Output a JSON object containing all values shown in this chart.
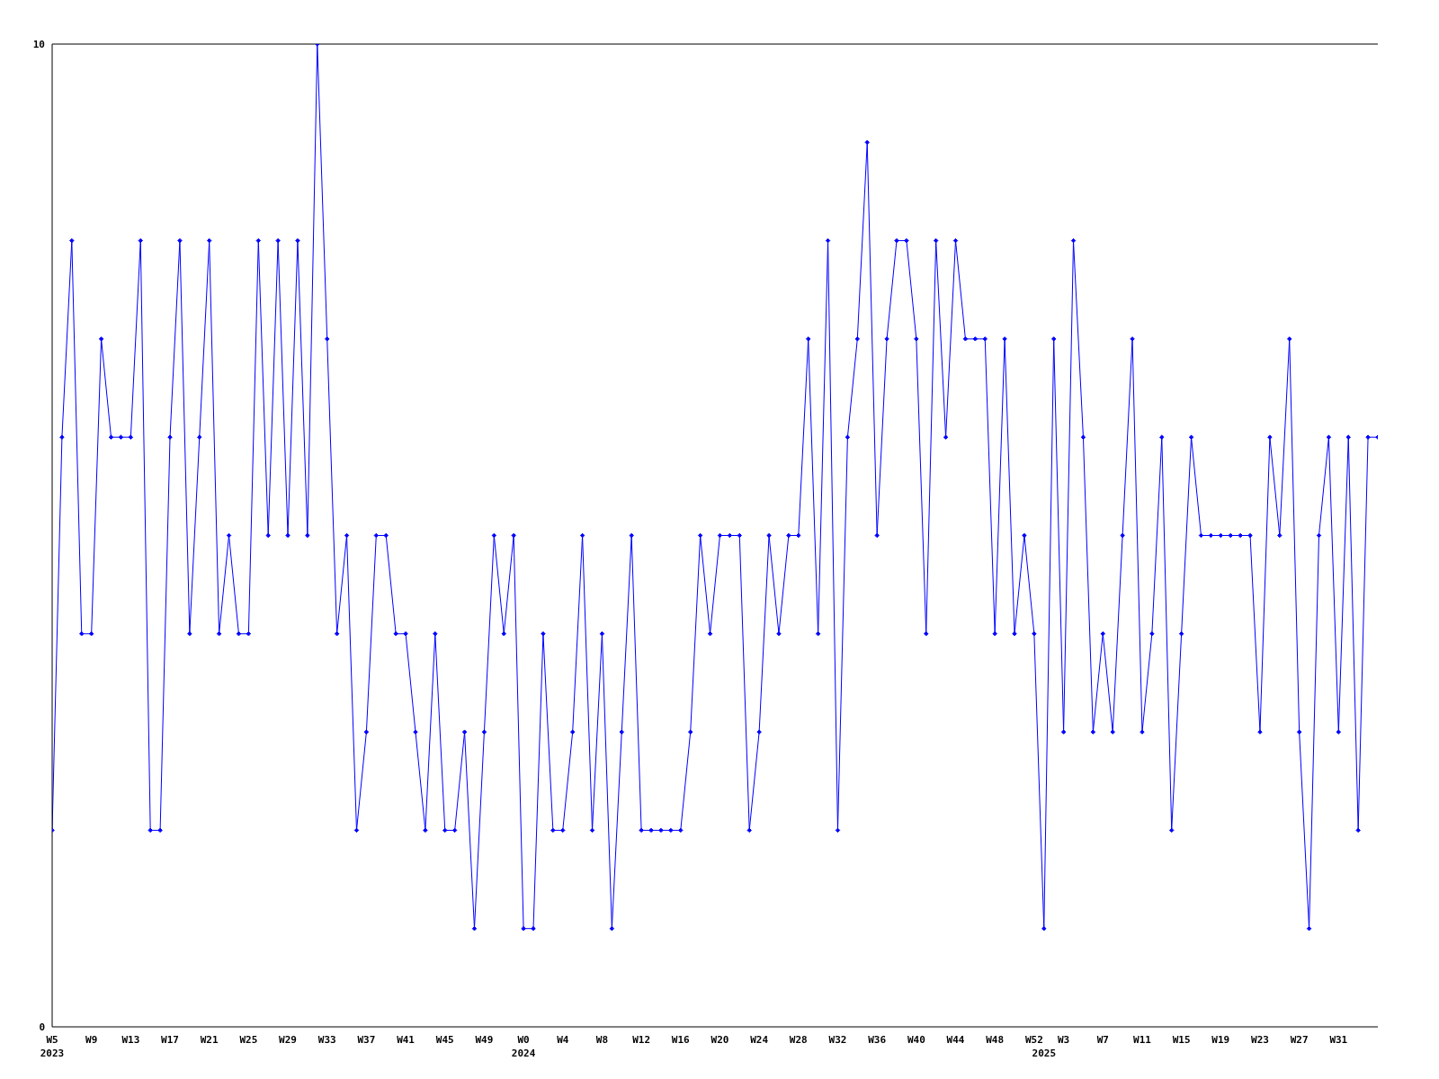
{
  "chart_data": {
    "type": "line",
    "categories": [
      "W5\n2023",
      null,
      null,
      null,
      "W9",
      null,
      null,
      null,
      "W13",
      null,
      null,
      null,
      "W17",
      null,
      null,
      null,
      "W21",
      null,
      null,
      null,
      "W25",
      null,
      null,
      null,
      "W29",
      null,
      null,
      null,
      "W33",
      null,
      null,
      null,
      "W37",
      null,
      null,
      null,
      "W41",
      null,
      null,
      null,
      "W45",
      null,
      null,
      null,
      "W49",
      null,
      null,
      null,
      "W0\n2024",
      null,
      null,
      null,
      "W4",
      null,
      null,
      null,
      "W8",
      null,
      null,
      null,
      "W12",
      null,
      null,
      null,
      "W16",
      null,
      null,
      null,
      "W20",
      null,
      null,
      null,
      "W24",
      null,
      null,
      null,
      "W28",
      null,
      null,
      null,
      "W32",
      null,
      null,
      null,
      "W36",
      null,
      null,
      null,
      "W40",
      null,
      null,
      null,
      "W44",
      null,
      null,
      null,
      "W48",
      null,
      null,
      null,
      "W52",
      "\n2025",
      null,
      "W3",
      null,
      null,
      null,
      "W7",
      null,
      null,
      null,
      "W11",
      null,
      null,
      null,
      "W15",
      null,
      null,
      null,
      "W19",
      null,
      null,
      null,
      "W23",
      null,
      null,
      null,
      "W27",
      null,
      null,
      null,
      "W31",
      null,
      null,
      null,
      null
    ],
    "series": [
      {
        "color": "#0000ff",
        "values": [
          2,
          6,
          8,
          4,
          4,
          7,
          6,
          6,
          6,
          8,
          2,
          2,
          6,
          8,
          4,
          6,
          8,
          4,
          5,
          4,
          4,
          8,
          5,
          8,
          5,
          8,
          5,
          10,
          7,
          4,
          5,
          2,
          3,
          5,
          5,
          4,
          4,
          3,
          2,
          4,
          2,
          2,
          3,
          1,
          3,
          5,
          4,
          5,
          1,
          1,
          4,
          2,
          2,
          3,
          5,
          2,
          4,
          1,
          3,
          5,
          2,
          2,
          2,
          2,
          2,
          3,
          5,
          4,
          5,
          5,
          5,
          2,
          3,
          5,
          4,
          5,
          5,
          7,
          4,
          8,
          2,
          6,
          7,
          9,
          5,
          7,
          8,
          8,
          7,
          4,
          8,
          6,
          8,
          7,
          7,
          7,
          4,
          7,
          4,
          5,
          4,
          1,
          7,
          3,
          8,
          6,
          3,
          4,
          3,
          5,
          7,
          3,
          4,
          6,
          2,
          4,
          6,
          5,
          5,
          5,
          5,
          5,
          5,
          3,
          6,
          5,
          7,
          3,
          1,
          5,
          6,
          3,
          6,
          2,
          6,
          6
        ]
      }
    ],
    "ylim": [
      0,
      10
    ],
    "yticks": [
      0,
      10
    ],
    "grid": false,
    "legend": false,
    "marker": "diamond",
    "line_style": "solid"
  }
}
